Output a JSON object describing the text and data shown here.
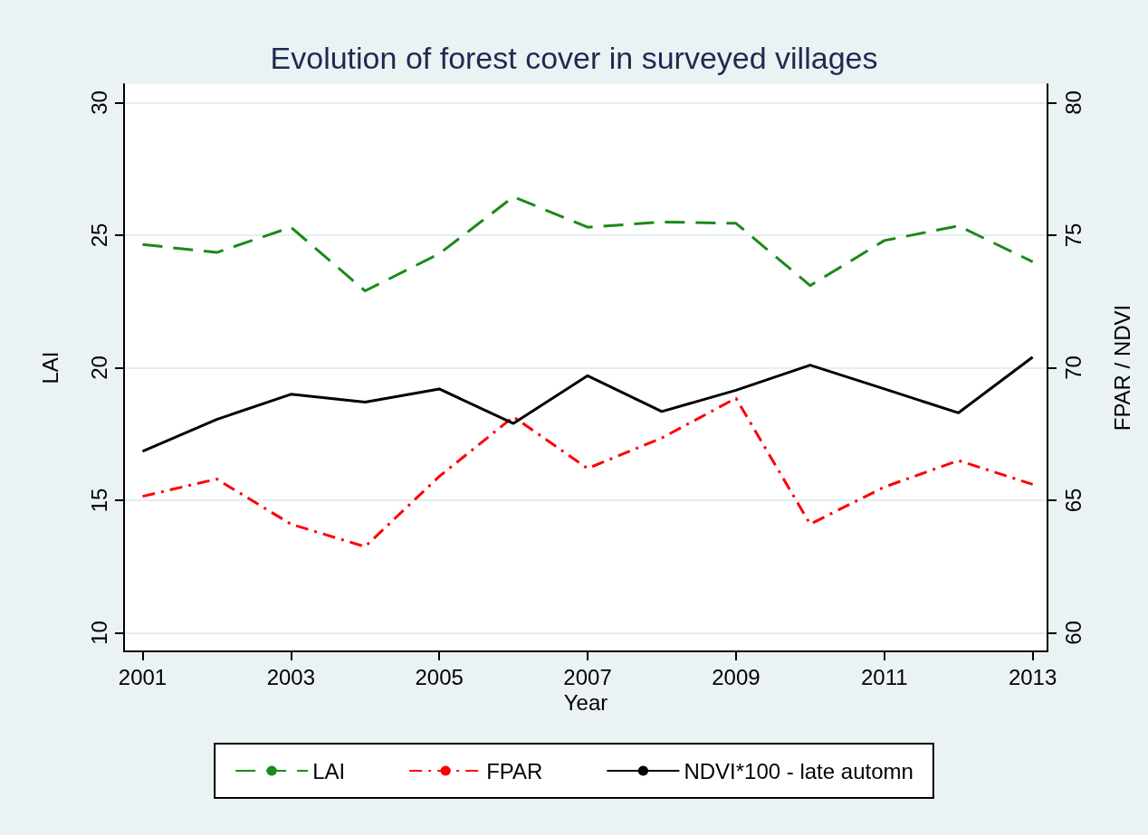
{
  "chart_data": {
    "type": "line",
    "title": "Evolution of forest cover in surveyed villages",
    "xlabel": "Year",
    "ylabel": "LAI",
    "y2label": "FPAR / NDVI",
    "x": [
      2001,
      2002,
      2003,
      2004,
      2005,
      2006,
      2007,
      2008,
      2009,
      2010,
      2011,
      2012,
      2013
    ],
    "series": [
      {
        "name": "LAI",
        "color": "#1a8a1a",
        "line_style": "dashed",
        "values": [
          24.65,
          24.35,
          25.3,
          22.9,
          24.3,
          26.45,
          25.3,
          25.5,
          25.45,
          23.1,
          24.8,
          25.35,
          24.0
        ]
      },
      {
        "name": "FPAR",
        "color": "#ff0000",
        "line_style": "dashdot",
        "axis": "y2",
        "values": [
          65.15,
          65.8,
          64.1,
          63.25,
          65.9,
          68.15,
          66.2,
          67.35,
          68.85,
          64.1,
          65.5,
          66.5,
          65.6
        ]
      },
      {
        "name": "NDVI*100 - late automn",
        "color": "#000000",
        "line_style": "solid",
        "axis": "y2",
        "values": [
          66.85,
          68.05,
          69.0,
          68.7,
          69.2,
          67.9,
          69.7,
          68.35,
          69.15,
          70.1,
          69.2,
          68.3,
          70.4
        ]
      }
    ],
    "xlim": [
      2000.75,
      2013.2
    ],
    "xticks": [
      2001,
      2003,
      2005,
      2007,
      2009,
      2011,
      2013
    ],
    "ylim": [
      9.3,
      30.7
    ],
    "yticks": [
      10,
      15,
      20,
      25,
      30
    ],
    "y2lim": [
      59.3,
      80.7
    ],
    "y2ticks": [
      60,
      65,
      70,
      75,
      80
    ],
    "grid": "y",
    "legend": "bottom",
    "marker": "none"
  }
}
